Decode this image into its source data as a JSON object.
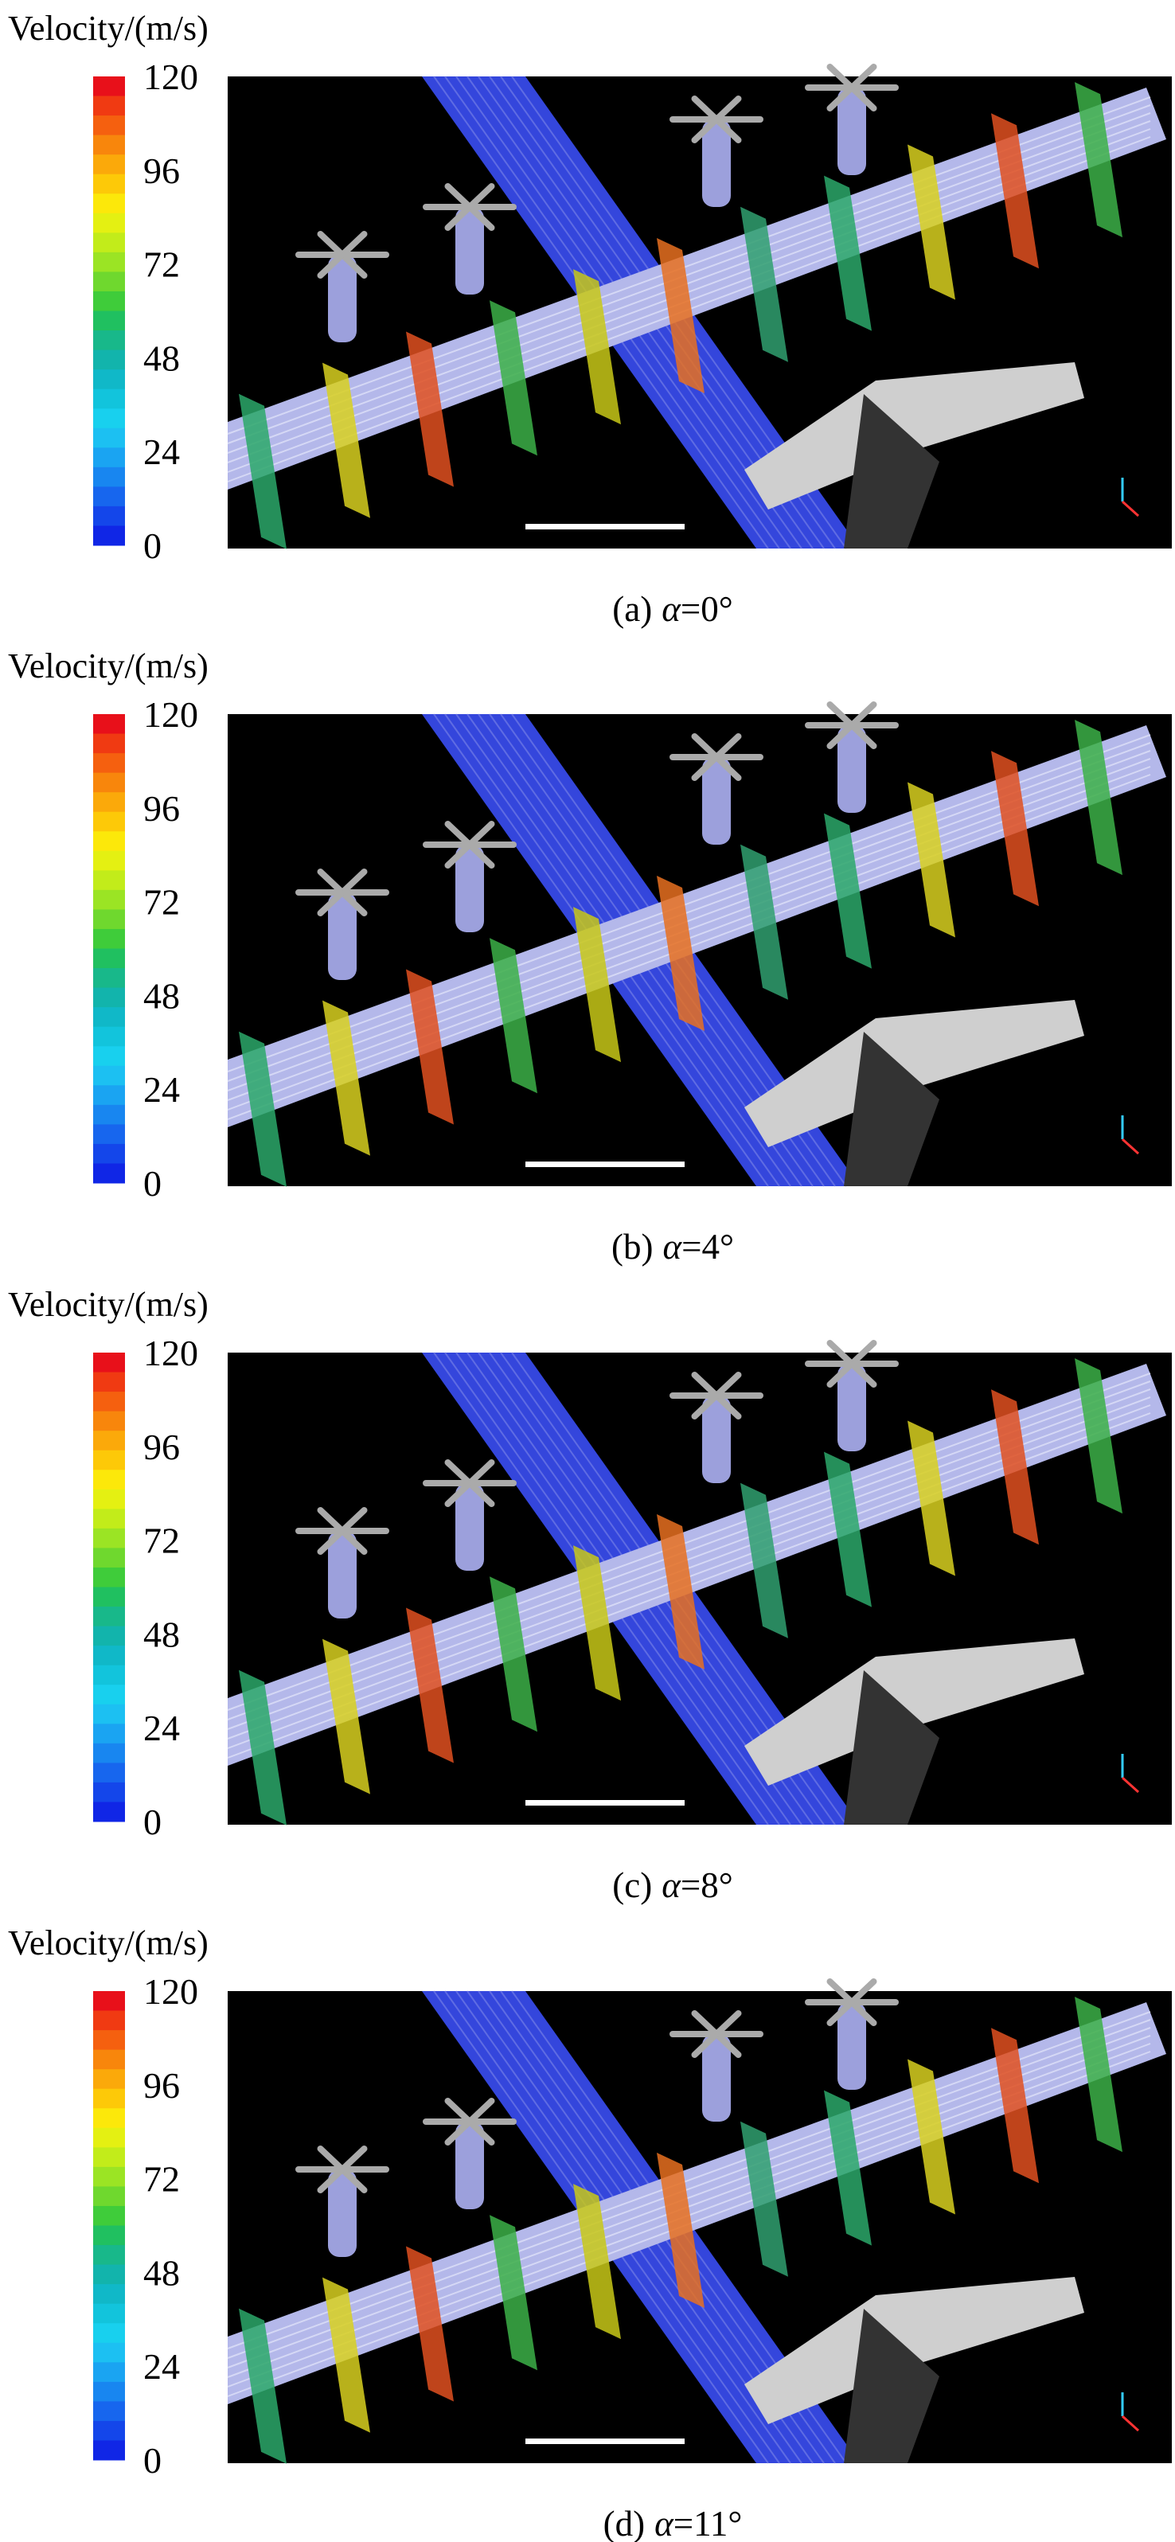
{
  "panels": [
    {
      "colorbar_title": "Velocity/(m/s)",
      "colorbar_ticks": [
        120,
        96,
        72,
        48,
        24,
        0
      ],
      "caption": {
        "label": "(a)",
        "symbol": "α",
        "value": "=0°"
      }
    },
    {
      "colorbar_title": "Velocity/(m/s)",
      "colorbar_ticks": [
        120,
        96,
        72,
        48,
        24,
        0
      ],
      "caption": {
        "label": "(b)",
        "symbol": "α",
        "value": "=4°"
      }
    },
    {
      "colorbar_title": "Velocity/(m/s)",
      "colorbar_ticks": [
        120,
        96,
        72,
        48,
        24,
        0
      ],
      "caption": {
        "label": "(c)",
        "symbol": "α",
        "value": "=8°"
      }
    },
    {
      "colorbar_title": "Velocity/(m/s)",
      "colorbar_ticks": [
        120,
        96,
        72,
        48,
        24,
        0
      ],
      "caption": {
        "label": "(d)",
        "symbol": "α",
        "value": "=11°"
      }
    }
  ]
}
